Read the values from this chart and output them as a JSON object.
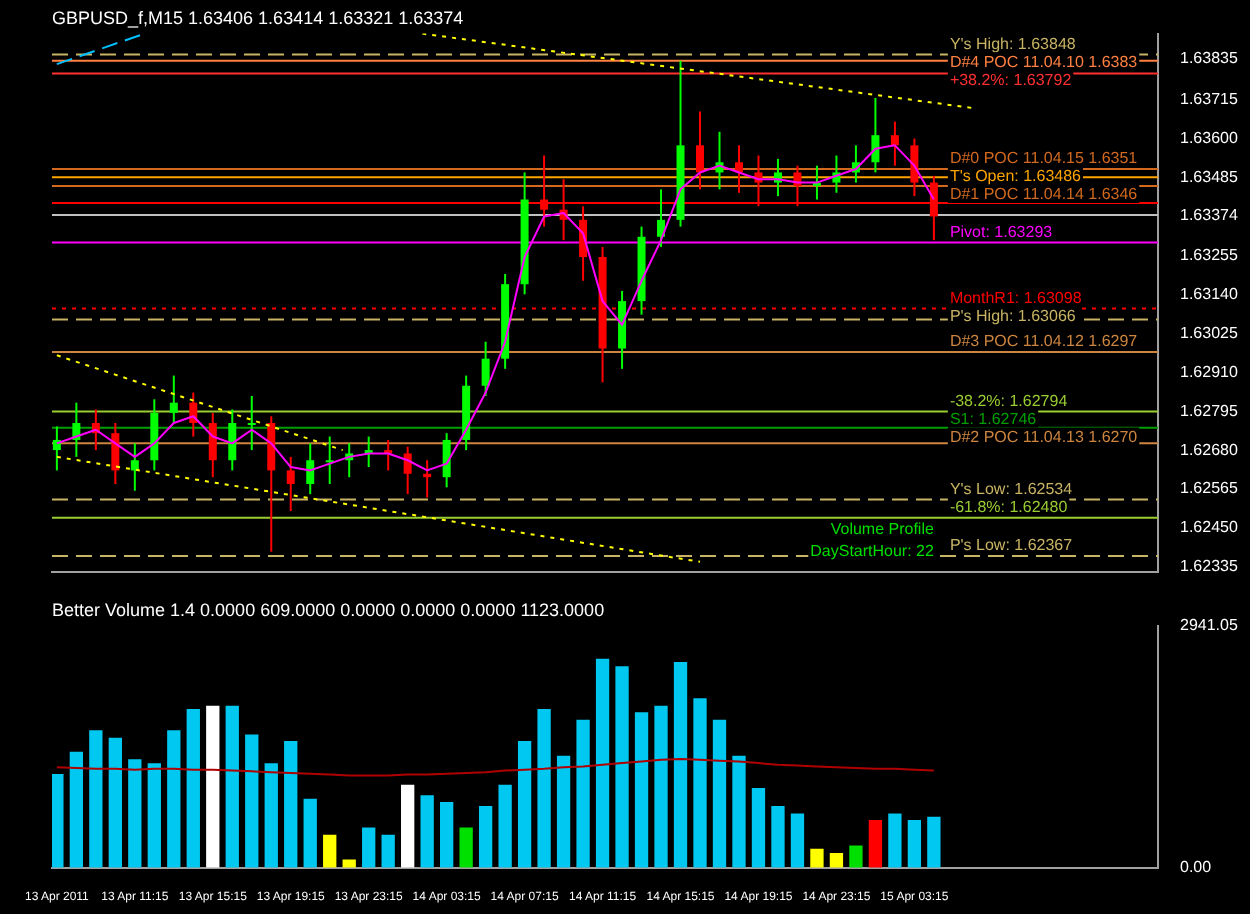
{
  "chart_data": [
    {
      "type": "candlestick",
      "title": "GBPUSD_f,M15 1.63406 1.63414 1.63321 1.63374",
      "x": [
        "2011-04-13T07:15",
        "2011-04-13T08:15",
        "2011-04-13T09:15",
        "2011-04-13T10:15",
        "2011-04-13T11:15",
        "2011-04-13T12:15",
        "2011-04-13T13:15",
        "2011-04-13T14:15",
        "2011-04-13T15:15",
        "2011-04-13T16:15",
        "2011-04-13T17:15",
        "2011-04-13T18:15",
        "2011-04-13T19:15",
        "2011-04-13T20:15",
        "2011-04-13T21:15",
        "2011-04-13T22:15",
        "2011-04-13T23:15",
        "2011-04-14T00:15",
        "2011-04-14T01:15",
        "2011-04-14T02:15",
        "2011-04-14T03:15",
        "2011-04-14T04:15",
        "2011-04-14T05:15",
        "2011-04-14T06:15",
        "2011-04-14T07:15",
        "2011-04-14T08:15",
        "2011-04-14T09:15",
        "2011-04-14T10:15",
        "2011-04-14T11:15",
        "2011-04-14T12:15",
        "2011-04-14T13:15",
        "2011-04-14T14:15",
        "2011-04-14T15:15",
        "2011-04-14T16:15",
        "2011-04-14T17:15",
        "2011-04-14T18:15",
        "2011-04-14T19:15",
        "2011-04-14T20:15",
        "2011-04-14T21:15",
        "2011-04-14T22:15",
        "2011-04-14T23:15",
        "2011-04-15T00:15",
        "2011-04-15T01:15",
        "2011-04-15T02:15",
        "2011-04-15T03:15",
        "2011-04-15T04:15"
      ],
      "ohlc": [
        [
          1.6268,
          1.6275,
          1.6262,
          1.6271
        ],
        [
          1.6271,
          1.6282,
          1.6266,
          1.6276
        ],
        [
          1.6276,
          1.628,
          1.6268,
          1.6273
        ],
        [
          1.6273,
          1.6276,
          1.6258,
          1.6262
        ],
        [
          1.6262,
          1.627,
          1.6256,
          1.6265
        ],
        [
          1.6265,
          1.6283,
          1.6262,
          1.6279
        ],
        [
          1.6279,
          1.629,
          1.6276,
          1.6282
        ],
        [
          1.6282,
          1.6285,
          1.6272,
          1.6276
        ],
        [
          1.6276,
          1.6279,
          1.626,
          1.6265
        ],
        [
          1.6265,
          1.628,
          1.6262,
          1.6276
        ],
        [
          1.6276,
          1.6284,
          1.6268,
          1.6276
        ],
        [
          1.6276,
          1.6278,
          1.6238,
          1.6262
        ],
        [
          1.6262,
          1.6266,
          1.625,
          1.6258
        ],
        [
          1.6258,
          1.627,
          1.6255,
          1.6265
        ],
        [
          1.6265,
          1.6272,
          1.6258,
          1.6265
        ],
        [
          1.6265,
          1.627,
          1.626,
          1.6267
        ],
        [
          1.6267,
          1.6272,
          1.6263,
          1.6268
        ],
        [
          1.6268,
          1.6271,
          1.6262,
          1.6267
        ],
        [
          1.6267,
          1.6269,
          1.6255,
          1.6261
        ],
        [
          1.6261,
          1.6265,
          1.6254,
          1.626
        ],
        [
          1.626,
          1.6273,
          1.6257,
          1.6271
        ],
        [
          1.6271,
          1.629,
          1.6268,
          1.6287
        ],
        [
          1.6287,
          1.63,
          1.6284,
          1.6295
        ],
        [
          1.6295,
          1.632,
          1.6292,
          1.6317
        ],
        [
          1.6317,
          1.635,
          1.6314,
          1.6342
        ],
        [
          1.6342,
          1.6355,
          1.6334,
          1.6339
        ],
        [
          1.6339,
          1.6348,
          1.633,
          1.6336
        ],
        [
          1.6336,
          1.634,
          1.6318,
          1.6325
        ],
        [
          1.6325,
          1.6328,
          1.6288,
          1.6298
        ],
        [
          1.6298,
          1.6315,
          1.6292,
          1.6312
        ],
        [
          1.6312,
          1.6334,
          1.6308,
          1.6331
        ],
        [
          1.6331,
          1.6345,
          1.6328,
          1.6336
        ],
        [
          1.6336,
          1.6383,
          1.6334,
          1.6358
        ],
        [
          1.6358,
          1.6368,
          1.6345,
          1.635
        ],
        [
          1.635,
          1.6362,
          1.6345,
          1.6353
        ],
        [
          1.6353,
          1.6358,
          1.6344,
          1.635
        ],
        [
          1.635,
          1.6355,
          1.634,
          1.6347
        ],
        [
          1.6347,
          1.6354,
          1.6343,
          1.635
        ],
        [
          1.635,
          1.6352,
          1.634,
          1.6346
        ],
        [
          1.6346,
          1.6352,
          1.6342,
          1.6347
        ],
        [
          1.6347,
          1.6355,
          1.6344,
          1.635
        ],
        [
          1.635,
          1.6358,
          1.6347,
          1.6353
        ],
        [
          1.6353,
          1.6372,
          1.635,
          1.6361
        ],
        [
          1.6361,
          1.6365,
          1.6352,
          1.6358
        ],
        [
          1.6358,
          1.636,
          1.6343,
          1.6347
        ],
        [
          1.6347,
          1.6349,
          1.633,
          1.6337
        ]
      ],
      "series": [
        {
          "type": "line",
          "color": "#ff00ff",
          "values": [
            1.627,
            1.6272,
            1.6274,
            1.627,
            1.6266,
            1.627,
            1.6276,
            1.6278,
            1.6272,
            1.627,
            1.6274,
            1.627,
            1.6263,
            1.6262,
            1.6264,
            1.6266,
            1.6267,
            1.6267,
            1.6265,
            1.6262,
            1.6264,
            1.6274,
            1.6285,
            1.63,
            1.6325,
            1.6337,
            1.6338,
            1.6332,
            1.6312,
            1.6305,
            1.6318,
            1.633,
            1.6345,
            1.635,
            1.6352,
            1.635,
            1.6348,
            1.6348,
            1.6347,
            1.6347,
            1.6349,
            1.6351,
            1.6357,
            1.6358,
            1.6352,
            1.6342
          ]
        },
        {
          "type": "line",
          "color": "#ffff00",
          "line_style": "dotted",
          "x": [
            "2011-04-13T07:15",
            "2011-04-13T21:55"
          ],
          "values": [
            1.6296,
            1.6268
          ]
        },
        {
          "type": "line",
          "color": "#ffff00",
          "line_style": "dotted",
          "x": [
            "2011-04-13T07:15",
            "2011-04-14T16:15"
          ],
          "values": [
            1.6266,
            1.6235
          ]
        },
        {
          "type": "line",
          "color": "#ffff00",
          "line_style": "dotted",
          "x": [
            "2011-04-14T02:00",
            "2011-04-15T06:15"
          ],
          "values": [
            1.6391,
            1.6369
          ]
        },
        {
          "type": "line",
          "color": "#00bfff",
          "line_style": "dashed",
          "x": [
            "2011-04-13T07:15",
            "2011-04-13T11:45"
          ],
          "values": [
            1.6382,
            1.6391
          ]
        }
      ],
      "xlim": [
        "2011-04-13T07:00",
        "2011-04-15T15:45"
      ],
      "ylim": [
        1.6232,
        1.6391
      ],
      "yticks": [
        1.63835,
        1.63715,
        {
          "value": 1.636,
          "label": "1.63600"
        },
        1.63485,
        {
          "value": 1.63374,
          "label": "1.63374"
        },
        1.63255,
        {
          "value": 1.6314,
          "label": "1.63140"
        },
        1.63025,
        {
          "value": 1.6291,
          "label": "1.62910"
        },
        1.62795,
        {
          "value": 1.6268,
          "label": "1.62680"
        },
        1.62565,
        {
          "value": 1.6245,
          "label": "1.62450"
        },
        1.62335
      ],
      "tick_labels": "y",
      "grid": false,
      "legend": false,
      "marker": "none",
      "ref_lines": [
        {
          "axis": "y",
          "value": 1.63848,
          "label": "Y's High: 1.63848",
          "color": "#c8b464",
          "line_style": "dashed"
        },
        {
          "axis": "y",
          "value": 1.6383,
          "label": "D#4 POC 11.04.10 1.6383",
          "color": "#ff8040"
        },
        {
          "axis": "y",
          "value": 1.63792,
          "label": "+38.2%: 1.63792",
          "color": "#ff3030"
        },
        {
          "axis": "y",
          "value": 1.6351,
          "label": "D#0 POC 11.04.15 1.6351",
          "color": "#d2691e"
        },
        {
          "axis": "y",
          "value": 1.63486,
          "label": "T's Open: 1.63486",
          "color": "#ffa500"
        },
        {
          "axis": "y",
          "value": 1.6346,
          "label": "D#1 POC 11.04.14 1.6346",
          "color": "#d2691e"
        },
        {
          "axis": "y",
          "value": 1.6341,
          "color": "#ff0000"
        },
        {
          "axis": "y",
          "value": 1.63374,
          "color": "#c0c0c0"
        },
        {
          "axis": "y",
          "value": 1.63293,
          "label": "Pivot: 1.63293",
          "color": "#ff00ff"
        },
        {
          "axis": "y",
          "value": 1.63098,
          "label": "MonthR1: 1.63098",
          "color": "#ff0000",
          "line_style": "dotted"
        },
        {
          "axis": "y",
          "value": 1.63066,
          "label": "P's High: 1.63066",
          "color": "#c8b464",
          "line_style": "dashed"
        },
        {
          "axis": "y",
          "value": 1.6297,
          "label": "D#3 POC 11.04.12 1.6297",
          "color": "#cd853f"
        },
        {
          "axis": "y",
          "value": 1.62794,
          "label": "-38.2%: 1.62794",
          "color": "#9acd32"
        },
        {
          "axis": "y",
          "value": 1.62746,
          "label": "S1: 1.62746",
          "color": "#00a000"
        },
        {
          "axis": "y",
          "value": 1.627,
          "label": "D#2 POC 11.04.13 1.6270",
          "color": "#cd853f"
        },
        {
          "axis": "y",
          "value": 1.62534,
          "label": "Y's Low: 1.62534",
          "color": "#c8b464",
          "line_style": "dashed"
        },
        {
          "axis": "y",
          "value": 1.6248,
          "label": "-61.8%: 1.62480",
          "color": "#9acd32"
        },
        {
          "axis": "y",
          "value": 1.62367,
          "label": "P's Low: 1.62367",
          "color": "#c8b464",
          "line_style": "dashed"
        }
      ],
      "annotations": [
        "Volume Profile",
        "DayStartHour: 22"
      ]
    },
    {
      "type": "bar",
      "title": "Better Volume 1.4 0.0000 609.0000 0.0000 0.0000 0.0000 1123.0000",
      "x": [
        "2011-04-13T07:15",
        "2011-04-13T08:15",
        "2011-04-13T09:15",
        "2011-04-13T10:15",
        "2011-04-13T11:15",
        "2011-04-13T12:15",
        "2011-04-13T13:15",
        "2011-04-13T14:15",
        "2011-04-13T15:15",
        "2011-04-13T16:15",
        "2011-04-13T17:15",
        "2011-04-13T18:15",
        "2011-04-13T19:15",
        "2011-04-13T20:15",
        "2011-04-13T21:15",
        "2011-04-13T22:15",
        "2011-04-13T23:15",
        "2011-04-14T00:15",
        "2011-04-14T01:15",
        "2011-04-14T02:15",
        "2011-04-14T03:15",
        "2011-04-14T04:15",
        "2011-04-14T05:15",
        "2011-04-14T06:15",
        "2011-04-14T07:15",
        "2011-04-14T08:15",
        "2011-04-14T09:15",
        "2011-04-14T10:15",
        "2011-04-14T11:15",
        "2011-04-14T12:15",
        "2011-04-14T13:15",
        "2011-04-14T14:15",
        "2011-04-14T15:15",
        "2011-04-14T16:15",
        "2011-04-14T17:15",
        "2011-04-14T18:15",
        "2011-04-14T19:15",
        "2011-04-14T20:15",
        "2011-04-14T21:15",
        "2011-04-14T22:15",
        "2011-04-14T23:15",
        "2011-04-15T00:15",
        "2011-04-15T01:15",
        "2011-04-15T02:15",
        "2011-04-15T03:15",
        "2011-04-15T04:15"
      ],
      "series": [
        {
          "type": "bar",
          "values": [
            1130,
            1400,
            1660,
            1570,
            1310,
            1260,
            1660,
            1920,
            1960,
            1960,
            1610,
            1260,
            1530,
            830,
            390,
            90,
            480,
            390,
            1000,
            870,
            790,
            480,
            740,
            1000,
            1530,
            1920,
            1350,
            1790,
            2530,
            2440,
            1880,
            1960,
            2490,
            2050,
            1790,
            1350,
            960,
            740,
            650,
            220,
            170,
            260,
            570,
            650,
            570,
            609
          ],
          "colors": [
            "#00c8f0",
            "#00c8f0",
            "#00c8f0",
            "#00c8f0",
            "#00c8f0",
            "#00c8f0",
            "#00c8f0",
            "#00c8f0",
            "#ffffff",
            "#00c8f0",
            "#00c8f0",
            "#00c8f0",
            "#00c8f0",
            "#00c8f0",
            "#ffff00",
            "#ffff00",
            "#00c8f0",
            "#00c8f0",
            "#ffffff",
            "#00c8f0",
            "#00c8f0",
            "#00e000",
            "#00c8f0",
            "#00c8f0",
            "#00c8f0",
            "#00c8f0",
            "#00c8f0",
            "#00c8f0",
            "#00c8f0",
            "#00c8f0",
            "#00c8f0",
            "#00c8f0",
            "#00c8f0",
            "#00c8f0",
            "#00c8f0",
            "#00c8f0",
            "#00c8f0",
            "#00c8f0",
            "#00c8f0",
            "#ffff00",
            "#ffff00",
            "#00e000",
            "#ff0000",
            "#00c8f0",
            "#00c8f0",
            "#00c8f0"
          ]
        },
        {
          "type": "line",
          "color": "#b00000",
          "values": [
            1220,
            1210,
            1200,
            1200,
            1190,
            1200,
            1200,
            1190,
            1190,
            1180,
            1170,
            1160,
            1150,
            1140,
            1130,
            1120,
            1120,
            1120,
            1130,
            1130,
            1140,
            1150,
            1160,
            1180,
            1190,
            1200,
            1220,
            1230,
            1250,
            1270,
            1290,
            1310,
            1320,
            1310,
            1300,
            1290,
            1270,
            1250,
            1240,
            1230,
            1220,
            1210,
            1200,
            1200,
            1190,
            1180
          ]
        }
      ],
      "xlim": [
        "2011-04-13T07:00",
        "2011-04-15T15:45"
      ],
      "xticks": [
        {
          "value": "2011-04-13T07:15",
          "label": "13 Apr 2011"
        },
        {
          "value": "2011-04-13T11:15",
          "label": "13 Apr 11:15"
        },
        {
          "value": "2011-04-13T15:15",
          "label": "13 Apr 15:15"
        },
        {
          "value": "2011-04-13T19:15",
          "label": "13 Apr 19:15"
        },
        {
          "value": "2011-04-13T23:15",
          "label": "13 Apr 23:15"
        },
        {
          "value": "2011-04-14T03:15",
          "label": "14 Apr 03:15"
        },
        {
          "value": "2011-04-14T07:15",
          "label": "14 Apr 07:15"
        },
        {
          "value": "2011-04-14T11:15",
          "label": "14 Apr 11:15"
        },
        {
          "value": "2011-04-14T15:15",
          "label": "14 Apr 15:15"
        },
        {
          "value": "2011-04-14T19:15",
          "label": "14 Apr 19:15"
        },
        {
          "value": "2011-04-14T23:15",
          "label": "14 Apr 23:15"
        },
        {
          "value": "2011-04-15T03:15",
          "label": "15 Apr 03:15"
        }
      ],
      "ylim": [
        0,
        2941.05
      ],
      "yticks": [
        {
          "value": 0,
          "label": "0.00"
        },
        {
          "value": 2941.05,
          "label": "2941.05"
        }
      ],
      "grid": false,
      "legend": false,
      "marker": "none"
    }
  ]
}
